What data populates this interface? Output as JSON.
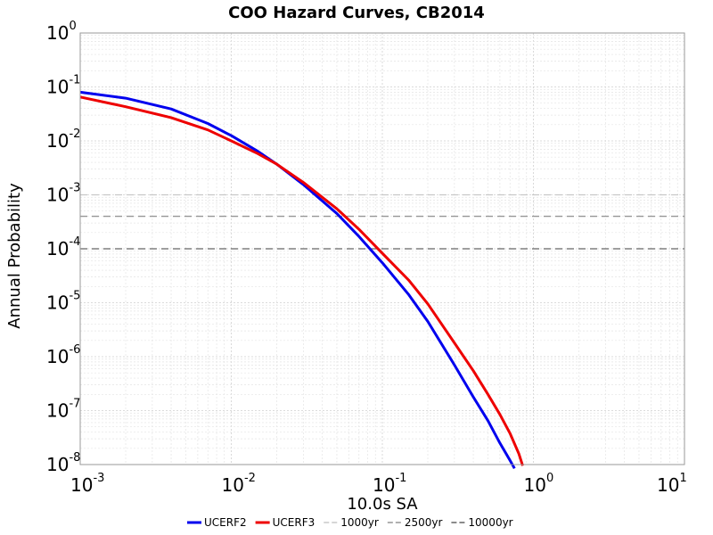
{
  "chart_data": {
    "type": "line",
    "title": "COO Hazard Curves, CB2014",
    "xlabel": "10.0s SA",
    "ylabel": "Annual Probability",
    "xscale": "log",
    "yscale": "log",
    "xlim": [
      0.001,
      10
    ],
    "ylim": [
      1e-08,
      1
    ],
    "x_ticks": [
      {
        "base": "10",
        "exp": "-3"
      },
      {
        "base": "10",
        "exp": "-2"
      },
      {
        "base": "10",
        "exp": "-1"
      },
      {
        "base": "10",
        "exp": "0"
      },
      {
        "base": "10",
        "exp": "1"
      }
    ],
    "y_ticks": [
      {
        "base": "10",
        "exp": "0"
      },
      {
        "base": "10",
        "exp": "-1"
      },
      {
        "base": "10",
        "exp": "-2"
      },
      {
        "base": "10",
        "exp": "-3"
      },
      {
        "base": "10",
        "exp": "-4"
      },
      {
        "base": "10",
        "exp": "-5"
      },
      {
        "base": "10",
        "exp": "-6"
      },
      {
        "base": "10",
        "exp": "-7"
      },
      {
        "base": "10",
        "exp": "-8"
      }
    ],
    "grid": true,
    "legend_position": "bottom",
    "series": [
      {
        "name": "UCERF2",
        "color": "#0000ee",
        "x": [
          0.001,
          0.002,
          0.004,
          0.007,
          0.01,
          0.015,
          0.02,
          0.03,
          0.05,
          0.07,
          0.1,
          0.15,
          0.2,
          0.3,
          0.4,
          0.5,
          0.6,
          0.7,
          0.75
        ],
        "y": [
          0.08,
          0.062,
          0.039,
          0.021,
          0.0125,
          0.0064,
          0.0037,
          0.00155,
          0.00045,
          0.00017,
          5.5e-05,
          1.4e-05,
          4.5e-06,
          7e-07,
          1.8e-07,
          6.5e-08,
          2.5e-08,
          1.2e-08,
          8.5e-09
        ]
      },
      {
        "name": "UCERF3",
        "color": "#ee0000",
        "x": [
          0.001,
          0.002,
          0.004,
          0.007,
          0.01,
          0.015,
          0.02,
          0.03,
          0.05,
          0.07,
          0.1,
          0.15,
          0.2,
          0.3,
          0.4,
          0.5,
          0.6,
          0.7,
          0.8,
          0.85
        ],
        "y": [
          0.065,
          0.043,
          0.027,
          0.016,
          0.01,
          0.0058,
          0.0037,
          0.0017,
          0.00055,
          0.00023,
          8.25e-05,
          2.6e-05,
          9.5e-06,
          1.8e-06,
          5.5e-07,
          2e-07,
          8.5e-08,
          3.8e-08,
          1.6e-08,
          9.5e-09
        ]
      }
    ],
    "reference_lines": [
      {
        "name": "1000yr",
        "y": 0.001,
        "color": "#c8c8c8"
      },
      {
        "name": "2500yr",
        "y": 0.0004,
        "color": "#969696"
      },
      {
        "name": "10000yr",
        "y": 0.0001,
        "color": "#646464"
      }
    ]
  }
}
